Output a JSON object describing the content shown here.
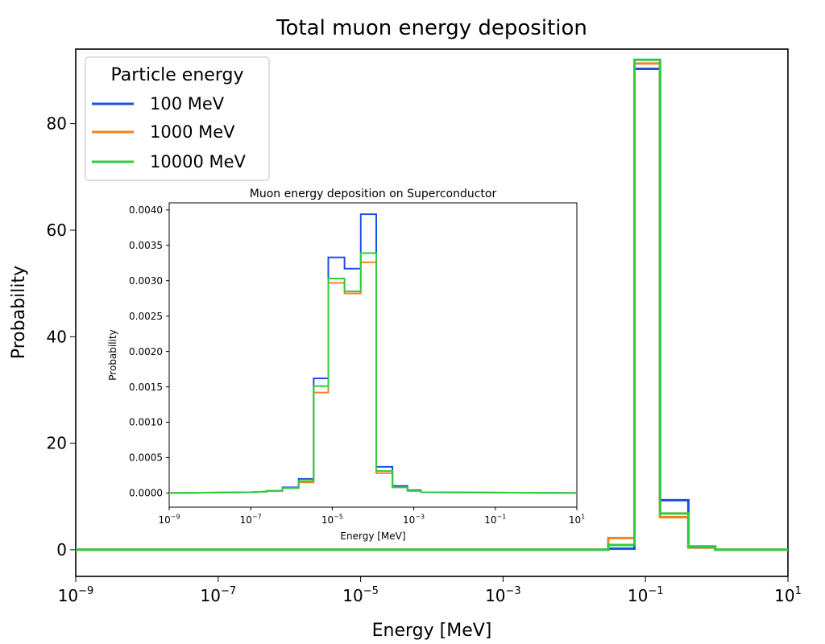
{
  "colors": {
    "100 MeV": "#1f4fe0",
    "1000 MeV": "#f5821f",
    "10000 MeV": "#2ecc40"
  },
  "chart_data": [
    {
      "type": "line",
      "subtype": "step-histogram",
      "title": "Total muon energy deposition",
      "xlabel": "Energy [MeV]",
      "ylabel": "Probability",
      "xscale": "log",
      "xlim": [
        1e-09,
        10
      ],
      "ylim": [
        -5,
        94
      ],
      "x_tick_labels": [
        {
          "base": "10",
          "exp": "−9"
        },
        {
          "base": "10",
          "exp": "−7"
        },
        {
          "base": "10",
          "exp": "−5"
        },
        {
          "base": "10",
          "exp": "−3"
        },
        {
          "base": "10",
          "exp": "−1"
        },
        {
          "base": "10",
          "exp": "1"
        }
      ],
      "x_tick_values": [
        1e-09,
        1e-07,
        1e-05,
        0.001,
        0.1,
        10
      ],
      "y_ticks": [
        0,
        20,
        40,
        60,
        80
      ],
      "legend": {
        "title": "Particle energy",
        "placement": "top-left"
      },
      "series": [
        {
          "name": "100 MeV",
          "points": [
            [
              1e-09,
              0
            ],
            [
              0.03,
              0
            ],
            [
              0.03,
              0.2
            ],
            [
              0.07,
              0.2
            ],
            [
              0.07,
              90.3
            ],
            [
              0.16,
              90.3
            ],
            [
              0.16,
              9.3
            ],
            [
              0.4,
              9.3
            ],
            [
              0.4,
              0.6
            ],
            [
              0.95,
              0.6
            ],
            [
              0.95,
              0
            ],
            [
              10,
              0
            ]
          ]
        },
        {
          "name": "1000 MeV",
          "points": [
            [
              1e-09,
              0
            ],
            [
              0.03,
              0
            ],
            [
              0.03,
              2.2
            ],
            [
              0.07,
              2.2
            ],
            [
              0.07,
              91.3
            ],
            [
              0.16,
              91.3
            ],
            [
              0.16,
              6.1
            ],
            [
              0.4,
              6.1
            ],
            [
              0.4,
              0.4
            ],
            [
              0.95,
              0.4
            ],
            [
              0.95,
              0
            ],
            [
              10,
              0
            ]
          ]
        },
        {
          "name": "10000 MeV",
          "points": [
            [
              1e-09,
              0
            ],
            [
              0.03,
              0
            ],
            [
              0.03,
              0.9
            ],
            [
              0.07,
              0.9
            ],
            [
              0.07,
              92.0
            ],
            [
              0.16,
              92.0
            ],
            [
              0.16,
              6.8
            ],
            [
              0.4,
              6.8
            ],
            [
              0.4,
              0.5
            ],
            [
              0.95,
              0.5
            ],
            [
              0.95,
              0
            ],
            [
              10,
              0
            ]
          ]
        }
      ]
    },
    {
      "type": "line",
      "subtype": "step-histogram",
      "title": "Muon energy deposition on Superconductor",
      "xlabel": "Energy [MeV]",
      "ylabel": "Probability",
      "xscale": "log",
      "xlim": [
        1e-09,
        10
      ],
      "ylim": [
        -0.0002,
        0.0041
      ],
      "x_tick_labels": [
        {
          "base": "10",
          "exp": "−9"
        },
        {
          "base": "10",
          "exp": "−7"
        },
        {
          "base": "10",
          "exp": "−5"
        },
        {
          "base": "10",
          "exp": "−3"
        },
        {
          "base": "10",
          "exp": "−1"
        },
        {
          "base": "10",
          "exp": "1"
        }
      ],
      "x_tick_values": [
        1e-09,
        1e-07,
        1e-05,
        0.001,
        0.1,
        10
      ],
      "y_tick_labels": [
        "0.0000",
        "0.0005",
        "0.0010",
        "0.0015",
        "0.0020",
        "0.0025",
        "0.0030",
        "0.0035",
        "0.0040"
      ],
      "y_tick_values": [
        0,
        0.0005,
        0.001,
        0.0015,
        0.002,
        0.0025,
        0.003,
        0.0035,
        0.004
      ],
      "series": [
        {
          "name": "100 MeV",
          "points": [
            [
              1e-09,
              0
            ],
            [
              1e-07,
              1e-05
            ],
            [
              1e-07,
              1e-05
            ],
            [
              2.5e-07,
              2e-05
            ],
            [
              2.5e-07,
              3e-05
            ],
            [
              6e-07,
              3e-05
            ],
            [
              6e-07,
              8e-05
            ],
            [
              1.5e-06,
              8e-05
            ],
            [
              1.5e-06,
              0.0002
            ],
            [
              3.5e-06,
              0.0002
            ],
            [
              3.5e-06,
              0.00162
            ],
            [
              8e-06,
              0.00162
            ],
            [
              8e-06,
              0.00333
            ],
            [
              2e-05,
              0.00333
            ],
            [
              2e-05,
              0.00317
            ],
            [
              5e-05,
              0.00317
            ],
            [
              5e-05,
              0.00394
            ],
            [
              0.00012,
              0.00394
            ],
            [
              0.00012,
              0.00037
            ],
            [
              0.0003,
              0.00037
            ],
            [
              0.0003,
              0.0001
            ],
            [
              0.0007,
              0.0001
            ],
            [
              0.0007,
              4e-05
            ],
            [
              0.0015,
              4e-05
            ],
            [
              0.0015,
              1e-05
            ],
            [
              10,
              0
            ]
          ]
        },
        {
          "name": "1000 MeV",
          "points": [
            [
              1e-09,
              0
            ],
            [
              1e-07,
              1e-05
            ],
            [
              2.5e-07,
              2e-05
            ],
            [
              2.5e-07,
              3e-05
            ],
            [
              6e-07,
              3e-05
            ],
            [
              6e-07,
              7e-05
            ],
            [
              1.5e-06,
              7e-05
            ],
            [
              1.5e-06,
              0.00015
            ],
            [
              3.5e-06,
              0.00015
            ],
            [
              3.5e-06,
              0.00142
            ],
            [
              8e-06,
              0.00142
            ],
            [
              8e-06,
              0.00297
            ],
            [
              2e-05,
              0.00297
            ],
            [
              2e-05,
              0.00282
            ],
            [
              5e-05,
              0.00282
            ],
            [
              5e-05,
              0.00326
            ],
            [
              0.00012,
              0.00326
            ],
            [
              0.00012,
              0.00028
            ],
            [
              0.0003,
              0.00028
            ],
            [
              0.0003,
              8e-05
            ],
            [
              0.0007,
              8e-05
            ],
            [
              0.0007,
              3e-05
            ],
            [
              0.0015,
              3e-05
            ],
            [
              0.0015,
              1e-05
            ],
            [
              10,
              0
            ]
          ]
        },
        {
          "name": "10000 MeV",
          "points": [
            [
              1e-09,
              0
            ],
            [
              1e-07,
              1e-05
            ],
            [
              2.5e-07,
              2e-05
            ],
            [
              2.5e-07,
              3e-05
            ],
            [
              6e-07,
              3e-05
            ],
            [
              6e-07,
              7e-05
            ],
            [
              1.5e-06,
              7e-05
            ],
            [
              1.5e-06,
              0.00017
            ],
            [
              3.5e-06,
              0.00017
            ],
            [
              3.5e-06,
              0.00151
            ],
            [
              8e-06,
              0.00151
            ],
            [
              8e-06,
              0.00303
            ],
            [
              2e-05,
              0.00303
            ],
            [
              2e-05,
              0.00285
            ],
            [
              5e-05,
              0.00285
            ],
            [
              5e-05,
              0.00339
            ],
            [
              0.00012,
              0.00339
            ],
            [
              0.00012,
              0.00031
            ],
            [
              0.0003,
              0.00031
            ],
            [
              0.0003,
              8e-05
            ],
            [
              0.0007,
              8e-05
            ],
            [
              0.0007,
              3e-05
            ],
            [
              0.0015,
              3e-05
            ],
            [
              0.0015,
              1e-05
            ],
            [
              10,
              0
            ]
          ]
        }
      ]
    }
  ]
}
